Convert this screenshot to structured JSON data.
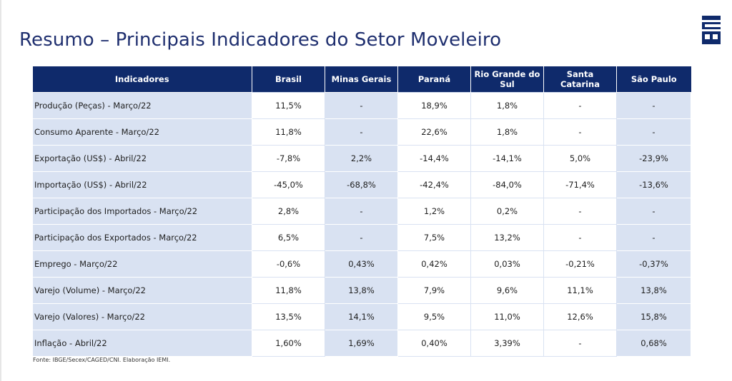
{
  "title": "Resumo – Principais Indicadores do Setor Moveleiro",
  "logo": {
    "text": "IEMI",
    "color": "#0f2a6b"
  },
  "colors": {
    "header_bg": "#0f2a6b",
    "band_bg": "#d9e2f2",
    "title": "#1f2f6f"
  },
  "table": {
    "headers": [
      "Indicadores",
      "Brasil",
      "Minas Gerais",
      "Paraná",
      "Rio Grande do Sul",
      "Santa Catarina",
      "São Paulo"
    ],
    "rows": [
      {
        "label": "Produção (Peças) - Março/22",
        "values": [
          "11,5%",
          "-",
          "18,9%",
          "1,8%",
          "-",
          "-"
        ]
      },
      {
        "label": "Consumo Aparente - Março/22",
        "values": [
          "11,8%",
          "-",
          "22,6%",
          "1,8%",
          "-",
          "-"
        ]
      },
      {
        "label": "Exportação (US$) - Abril/22",
        "values": [
          "-7,8%",
          "2,2%",
          "-14,4%",
          "-14,1%",
          "5,0%",
          "-23,9%"
        ]
      },
      {
        "label": "Importação (US$) - Abril/22",
        "values": [
          "-45,0%",
          "-68,8%",
          "-42,4%",
          "-84,0%",
          "-71,4%",
          "-13,6%"
        ]
      },
      {
        "label": "Participação dos Importados - Março/22",
        "values": [
          "2,8%",
          "-",
          "1,2%",
          "0,2%",
          "-",
          "-"
        ]
      },
      {
        "label": "Participação dos Exportados - Março/22",
        "values": [
          "6,5%",
          "-",
          "7,5%",
          "13,2%",
          "-",
          "-"
        ]
      },
      {
        "label": "Emprego - Março/22",
        "values": [
          "-0,6%",
          "0,43%",
          "0,42%",
          "0,03%",
          "-0,21%",
          "-0,37%"
        ]
      },
      {
        "label": "Varejo (Volume) - Março/22",
        "values": [
          "11,8%",
          "13,8%",
          "7,9%",
          "9,6%",
          "11,1%",
          "13,8%"
        ]
      },
      {
        "label": "Varejo (Valores) - Março/22",
        "values": [
          "13,5%",
          "14,1%",
          "9,5%",
          "11,0%",
          "12,6%",
          "15,8%"
        ]
      },
      {
        "label": "Inflação - Abril/22",
        "values": [
          "1,60%",
          "1,69%",
          "0,40%",
          "3,39%",
          "-",
          "0,68%"
        ]
      }
    ]
  },
  "source": "Fonte: IBGE/Secex/CAGED/CNI. Elaboração IEMI."
}
